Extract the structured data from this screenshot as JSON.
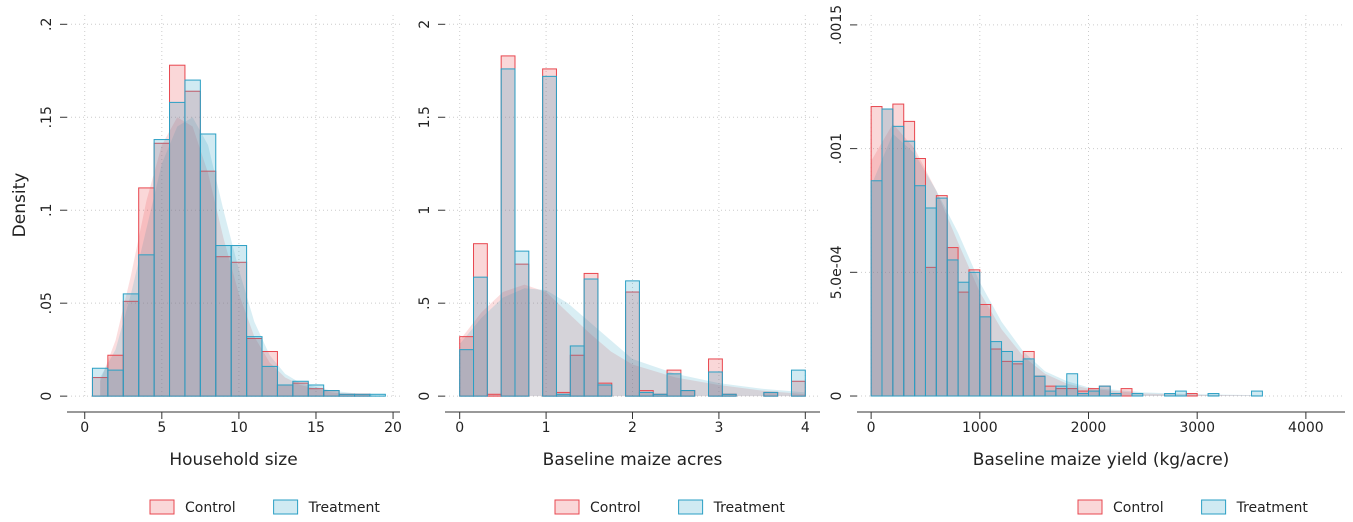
{
  "chart_data": [
    {
      "type": "histogram",
      "xlabel": "Household size",
      "ylabel": "Density",
      "bins": [
        0.5,
        1.5,
        2.5,
        3.5,
        4.5,
        5.5,
        6.5,
        7.5,
        8.5,
        9.5,
        10.5,
        11.5,
        12.5,
        13.5,
        14.5,
        15.5,
        16.5,
        17.5,
        18.5,
        19.5
      ],
      "series": [
        {
          "name": "Control",
          "color": "#e8474f",
          "values": [
            0.01,
            0.022,
            0.051,
            0.112,
            0.136,
            0.178,
            0.164,
            0.121,
            0.075,
            0.072,
            0.031,
            0.024,
            0.006,
            0.007,
            0.004,
            0.003,
            0.001,
            0.001,
            0
          ],
          "density_x": [
            1,
            2,
            3,
            4,
            5,
            6,
            7,
            8,
            9,
            10,
            11,
            12,
            13,
            14,
            15,
            16,
            17,
            18,
            19
          ],
          "density": [
            0.008,
            0.03,
            0.065,
            0.105,
            0.135,
            0.15,
            0.145,
            0.12,
            0.085,
            0.055,
            0.032,
            0.018,
            0.01,
            0.006,
            0.004,
            0.002,
            0.001,
            0.001,
            0
          ]
        },
        {
          "name": "Treatment",
          "color": "#2a9fc4",
          "values": [
            0.015,
            0.014,
            0.055,
            0.076,
            0.138,
            0.158,
            0.17,
            0.141,
            0.081,
            0.081,
            0.032,
            0.016,
            0.006,
            0.008,
            0.006,
            0.003,
            0.001,
            0.001,
            0.001
          ],
          "density_x": [
            1,
            2,
            3,
            4,
            5,
            6,
            7,
            8,
            9,
            10,
            11,
            12,
            13,
            14,
            15,
            16,
            17,
            18,
            19
          ],
          "density": [
            0.01,
            0.025,
            0.055,
            0.09,
            0.125,
            0.145,
            0.15,
            0.135,
            0.1,
            0.068,
            0.04,
            0.022,
            0.012,
            0.007,
            0.005,
            0.003,
            0.002,
            0.001,
            0
          ]
        }
      ],
      "xlim": [
        -1.15,
        20.45
      ],
      "ylim": [
        -0.001,
        0.205
      ],
      "xticks": [
        0,
        5,
        10,
        15,
        20
      ],
      "yticks": [
        0,
        {
          "value": 0.05,
          "label": ".05"
        },
        {
          "value": 0.1,
          "label": ".1"
        },
        {
          "value": 0.15,
          "label": ".15"
        },
        {
          "value": 0.2,
          "label": ".2"
        }
      ],
      "grid": true,
      "legend": "bottom"
    },
    {
      "type": "histogram",
      "xlabel": "Baseline maize acres",
      "bins": [
        0,
        0.16,
        0.32,
        0.48,
        0.64,
        0.8,
        0.96,
        1.12,
        1.28,
        1.44,
        1.6,
        1.76,
        1.92,
        2.08,
        2.24,
        2.4,
        2.56,
        2.72,
        2.88,
        3.04,
        3.2,
        3.36,
        3.52,
        3.68,
        3.84,
        4
      ],
      "series": [
        {
          "name": "Control",
          "color": "#e8474f",
          "values": [
            0.32,
            0.82,
            0.01,
            1.83,
            0.71,
            0,
            1.76,
            0.02,
            0.22,
            0.66,
            0.07,
            0,
            0.56,
            0.03,
            0.01,
            0.14,
            0.03,
            0,
            0.2,
            0.01,
            0,
            0,
            0.02,
            0,
            0.08
          ],
          "density_x": [
            0,
            0.25,
            0.5,
            0.75,
            1,
            1.25,
            1.5,
            1.75,
            2,
            2.5,
            3,
            3.5,
            4
          ],
          "density": [
            0.3,
            0.45,
            0.56,
            0.6,
            0.56,
            0.45,
            0.34,
            0.24,
            0.17,
            0.1,
            0.06,
            0.03,
            0.01
          ]
        },
        {
          "name": "Treatment",
          "color": "#2a9fc4",
          "values": [
            0.25,
            0.64,
            0,
            1.76,
            0.78,
            0,
            1.72,
            0.01,
            0.27,
            0.63,
            0.06,
            0,
            0.62,
            0.02,
            0.01,
            0.12,
            0.03,
            0,
            0.13,
            0.01,
            0,
            0,
            0.02,
            0,
            0.14
          ],
          "density_x": [
            0,
            0.25,
            0.5,
            0.75,
            1,
            1.25,
            1.5,
            1.75,
            2,
            2.5,
            3,
            3.5,
            4
          ],
          "density": [
            0.28,
            0.42,
            0.53,
            0.58,
            0.57,
            0.5,
            0.4,
            0.3,
            0.2,
            0.12,
            0.07,
            0.04,
            0.02
          ]
        }
      ],
      "xlim": [
        -0.17,
        4.17
      ],
      "ylim": [
        -0.01,
        2.05
      ],
      "xticks": [
        0,
        1,
        2,
        3,
        4
      ],
      "yticks": [
        0,
        {
          "value": 0.5,
          "label": ".5"
        },
        1,
        1.5,
        2
      ],
      "grid": true,
      "legend": "bottom"
    },
    {
      "type": "histogram",
      "xlabel": "Baseline maize yield (kg/acre)",
      "bins": [
        0,
        100,
        200,
        300,
        400,
        500,
        600,
        700,
        800,
        900,
        1000,
        1100,
        1200,
        1300,
        1400,
        1500,
        1600,
        1700,
        1800,
        1900,
        2000,
        2100,
        2200,
        2300,
        2400,
        2500,
        2600,
        2700,
        2800,
        2900,
        3000,
        3100,
        3200,
        3300,
        3400,
        3500,
        3600
      ],
      "series": [
        {
          "name": "Control",
          "color": "#e8474f",
          "values": [
            0.00117,
            0.00116,
            0.00118,
            0.00111,
            0.00096,
            0.00052,
            0.00081,
            0.0006,
            0.00042,
            0.00051,
            0.00037,
            0.00019,
            0.00014,
            0.00013,
            0.00018,
            8e-05,
            4e-05,
            3e-05,
            3e-05,
            2e-05,
            3e-05,
            4e-05,
            1e-05,
            3e-05,
            0,
            0,
            0,
            0,
            0,
            1e-05,
            0,
            0,
            0,
            0,
            0,
            0
          ],
          "density_x": [
            0,
            200,
            400,
            600,
            800,
            1000,
            1200,
            1400,
            1600,
            1800,
            2000,
            2500,
            3000,
            3600
          ],
          "density": [
            0.00095,
            0.0011,
            0.001,
            0.00083,
            0.00062,
            0.00042,
            0.00027,
            0.00016,
            9e-05,
            5e-05,
            3e-05,
            1e-05,
            5e-06,
            2e-06
          ]
        },
        {
          "name": "Treatment",
          "color": "#2a9fc4",
          "values": [
            0.00087,
            0.00116,
            0.00109,
            0.00103,
            0.00085,
            0.00076,
            0.0008,
            0.00055,
            0.00046,
            0.0005,
            0.00032,
            0.00022,
            0.00018,
            0.00014,
            0.00015,
            8e-05,
            2e-05,
            4e-05,
            9e-05,
            1e-05,
            2e-05,
            4e-05,
            1e-05,
            0,
            1e-05,
            0,
            0,
            1e-05,
            2e-05,
            0,
            0,
            1e-05,
            0,
            0,
            0,
            2e-05
          ],
          "density_x": [
            0,
            200,
            400,
            600,
            800,
            1000,
            1200,
            1400,
            1600,
            1800,
            2000,
            2500,
            3000,
            3600
          ],
          "density": [
            0.00085,
            0.00106,
            0.00098,
            0.00083,
            0.00066,
            0.00046,
            0.0003,
            0.00018,
            0.0001,
            6e-05,
            3.5e-05,
            1.5e-05,
            7e-06,
            3e-06
          ]
        }
      ],
      "xlim": [
        -130,
        4360
      ],
      "ylim": [
        -8e-06,
        0.00154
      ],
      "xticks": [
        0,
        1000,
        2000,
        3000,
        4000
      ],
      "yticks": [
        0,
        {
          "value": 0.0005,
          "label": "5.0e-04"
        },
        {
          "value": 0.001,
          "label": ".001"
        },
        {
          "value": 0.0015,
          "label": ".0015"
        }
      ],
      "grid": true,
      "legend": "bottom"
    }
  ]
}
